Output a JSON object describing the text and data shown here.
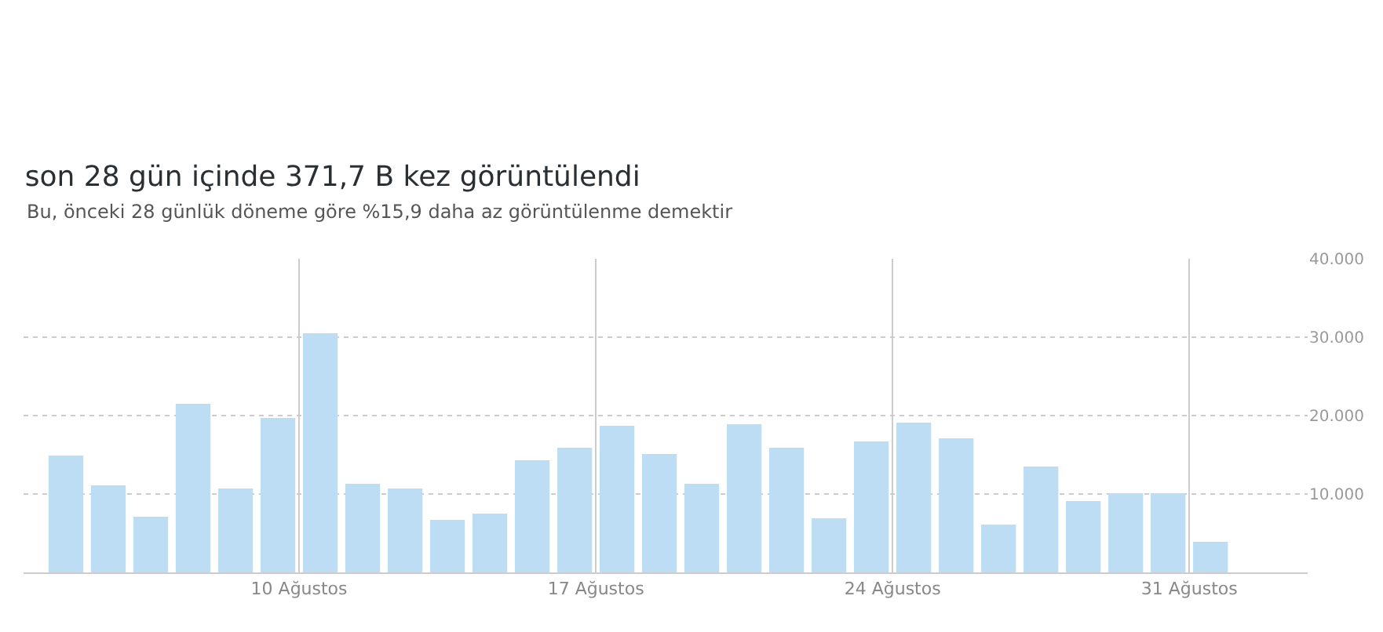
{
  "chart_data": {
    "type": "bar",
    "title": "son 28 gün içinde 371,7 B kez görüntülendi",
    "subtitle": "Bu, önceki 28 günlük döneme göre %15,9 daha az görüntülenme demektir",
    "x": [
      "--08-04",
      "--08-05",
      "--08-06",
      "--08-07",
      "--08-08",
      "--08-09",
      "--08-10",
      "--08-11",
      "--08-12",
      "--08-13",
      "--08-14",
      "--08-15",
      "--08-16",
      "--08-17",
      "--08-18",
      "--08-19",
      "--08-20",
      "--08-21",
      "--08-22",
      "--08-23",
      "--08-24",
      "--08-25",
      "--08-26",
      "--08-27",
      "--08-28",
      "--08-29",
      "--08-30",
      "--08-31"
    ],
    "values": [
      14900,
      11100,
      7100,
      21500,
      10700,
      19700,
      30500,
      11300,
      10700,
      6700,
      7500,
      14300,
      15900,
      18700,
      15100,
      11300,
      18900,
      15900,
      6900,
      16700,
      19100,
      17100,
      6100,
      13500,
      9100,
      10100,
      10100,
      3900
    ],
    "color": "#bcddf3",
    "xlim": [
      "--08-03T00:00",
      "--09-02T07:00"
    ],
    "xticks": [
      {
        "value": "--08-09T12:00",
        "label": "10 Ağustos"
      },
      {
        "value": "--08-16T12:00",
        "label": "17 Ağustos"
      },
      {
        "value": "--08-23T12:00",
        "label": "24 Ağustos"
      },
      {
        "value": "--08-30T12:00",
        "label": "31 Ağustos"
      }
    ],
    "ylim": [
      0,
      40000
    ],
    "yticks": [
      {
        "value": 10000,
        "label": "10.000"
      },
      {
        "value": 20000,
        "label": "20.000"
      },
      {
        "value": 30000,
        "label": "30.000"
      },
      {
        "value": 40000,
        "label": "40.000"
      }
    ],
    "grid": true
  }
}
